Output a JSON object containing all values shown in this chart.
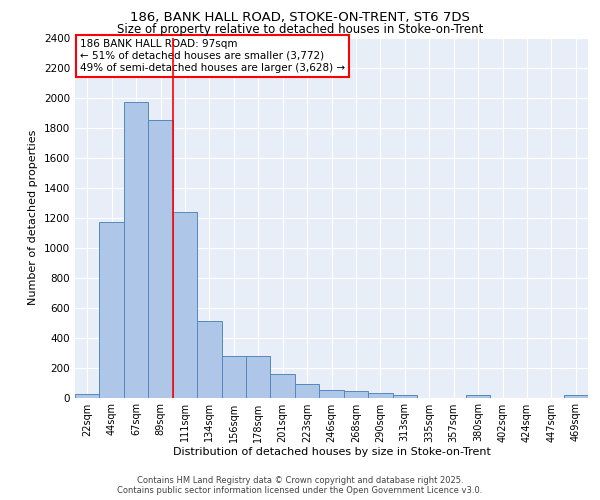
{
  "title_line1": "186, BANK HALL ROAD, STOKE-ON-TRENT, ST6 7DS",
  "title_line2": "Size of property relative to detached houses in Stoke-on-Trent",
  "xlabel": "Distribution of detached houses by size in Stoke-on-Trent",
  "ylabel": "Number of detached properties",
  "categories": [
    "22sqm",
    "44sqm",
    "67sqm",
    "89sqm",
    "111sqm",
    "134sqm",
    "156sqm",
    "178sqm",
    "201sqm",
    "223sqm",
    "246sqm",
    "268sqm",
    "290sqm",
    "313sqm",
    "335sqm",
    "357sqm",
    "380sqm",
    "402sqm",
    "424sqm",
    "447sqm",
    "469sqm"
  ],
  "values": [
    25,
    1170,
    1970,
    1850,
    1240,
    510,
    275,
    275,
    155,
    90,
    50,
    45,
    30,
    15,
    0,
    0,
    15,
    0,
    0,
    0,
    15
  ],
  "bar_color": "#aec6e8",
  "bar_edge_color": "#5588bb",
  "vline_x": 3.5,
  "vline_color": "red",
  "annotation_text": "186 BANK HALL ROAD: 97sqm\n← 51% of detached houses are smaller (3,772)\n49% of semi-detached houses are larger (3,628) →",
  "annotation_box_color": "white",
  "annotation_box_edge": "red",
  "ylim": [
    0,
    2400
  ],
  "yticks": [
    0,
    200,
    400,
    600,
    800,
    1000,
    1200,
    1400,
    1600,
    1800,
    2000,
    2200,
    2400
  ],
  "background_color": "#e8eef8",
  "grid_color": "white",
  "footer_line1": "Contains HM Land Registry data © Crown copyright and database right 2025.",
  "footer_line2": "Contains public sector information licensed under the Open Government Licence v3.0."
}
